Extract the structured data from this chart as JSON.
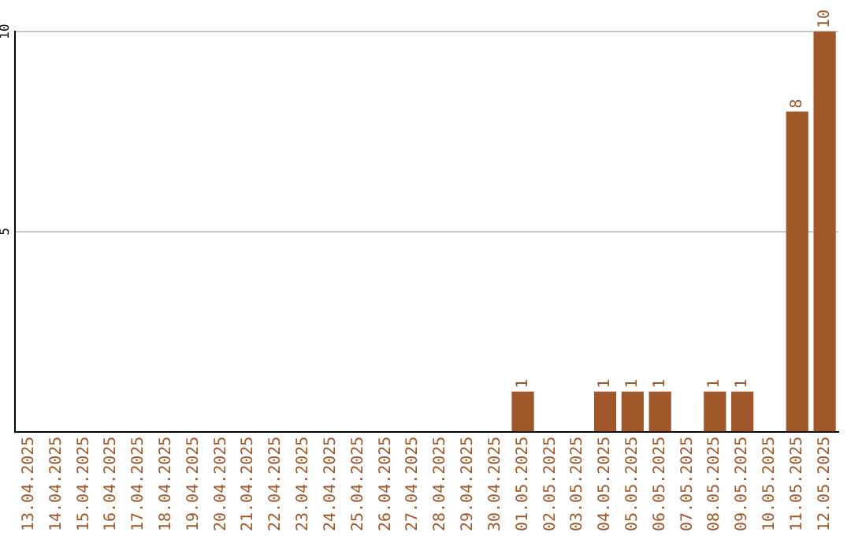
{
  "chart_data": {
    "type": "bar",
    "categories": [
      "13.04.2025",
      "14.04.2025",
      "15.04.2025",
      "16.04.2025",
      "17.04.2025",
      "18.04.2025",
      "19.04.2025",
      "20.04.2025",
      "21.04.2025",
      "22.04.2025",
      "23.04.2025",
      "24.04.2025",
      "25.04.2025",
      "26.04.2025",
      "27.04.2025",
      "28.04.2025",
      "29.04.2025",
      "30.04.2025",
      "01.05.2025",
      "02.05.2025",
      "03.05.2025",
      "04.05.2025",
      "05.05.2025",
      "06.05.2025",
      "07.05.2025",
      "08.05.2025",
      "09.05.2025",
      "10.05.2025",
      "11.05.2025",
      "12.05.2025"
    ],
    "values": [
      null,
      null,
      null,
      null,
      null,
      null,
      null,
      null,
      null,
      null,
      null,
      null,
      null,
      null,
      null,
      null,
      null,
      null,
      1,
      null,
      null,
      1,
      1,
      1,
      null,
      1,
      1,
      null,
      8,
      10
    ],
    "color": "#a0582a",
    "ylim": [
      0,
      10
    ],
    "yticks": [
      5,
      10
    ],
    "grid": "y",
    "data_labels": true
  }
}
